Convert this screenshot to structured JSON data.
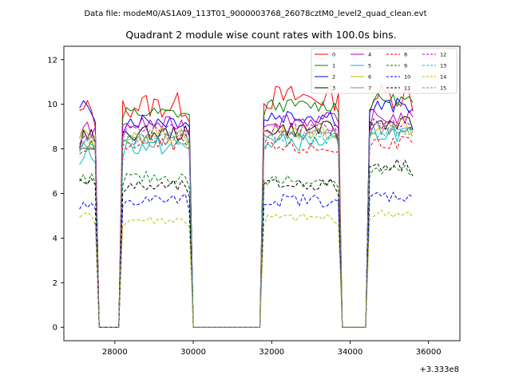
{
  "chart_data": {
    "type": "line",
    "suptitle": "Data file: modeM0/AS1A09_113T01_9000003768_26078cztM0_level2_quad_clean.evt",
    "title": "Quadrant 2 module wise count rates with 100.0s bins.",
    "xlabel": "",
    "ylabel": "",
    "x_offset_label": "+3.333e8",
    "xlim": [
      26700,
      36800
    ],
    "ylim": [
      -0.6,
      12.6
    ],
    "x_ticks": [
      {
        "value": 28000,
        "label": "28000"
      },
      {
        "value": 30000,
        "label": "30000"
      },
      {
        "value": 32000,
        "label": "32000"
      },
      {
        "value": 34000,
        "label": "34000"
      },
      {
        "value": 36000,
        "label": "36000"
      }
    ],
    "y_ticks": [
      {
        "value": 0,
        "label": "0"
      },
      {
        "value": 2,
        "label": "2"
      },
      {
        "value": 4,
        "label": "4"
      },
      {
        "value": 6,
        "label": "6"
      },
      {
        "value": 8,
        "label": "8"
      },
      {
        "value": 10,
        "label": "10"
      },
      {
        "value": 12,
        "label": "12"
      }
    ],
    "legend_position": "top-right",
    "grid": false,
    "segments": [
      {
        "start": 27100,
        "end": 27500
      },
      {
        "start": 28200,
        "end": 29900
      },
      {
        "start": 31800,
        "end": 33700
      },
      {
        "start": 34500,
        "end": 35600
      }
    ],
    "series": [
      {
        "name": "0",
        "color": "#ff0000",
        "style": "solid",
        "segment_means": [
          9.7,
          9.95,
          10.3,
          10.4
        ],
        "noise": 0.6
      },
      {
        "name": "1",
        "color": "#008000",
        "style": "solid",
        "segment_means": [
          8.2,
          9.6,
          9.95,
          10.2
        ],
        "noise": 0.3
      },
      {
        "name": "2",
        "color": "#0000ff",
        "style": "solid",
        "segment_means": [
          9.8,
          9.3,
          9.5,
          9.9
        ],
        "noise": 0.4
      },
      {
        "name": "3",
        "color": "#000000",
        "style": "solid",
        "segment_means": [
          8.6,
          8.7,
          8.9,
          9.2
        ],
        "noise": 0.35
      },
      {
        "name": "4",
        "color": "#bf00bf",
        "style": "solid",
        "segment_means": [
          8.9,
          9.1,
          9.3,
          9.4
        ],
        "noise": 0.35
      },
      {
        "name": "5",
        "color": "#00bfbf",
        "style": "solid",
        "segment_means": [
          7.8,
          8.1,
          8.3,
          8.7
        ],
        "noise": 0.4
      },
      {
        "name": "6",
        "color": "#bfbf00",
        "style": "solid",
        "segment_means": [
          8.5,
          8.7,
          8.8,
          9.0
        ],
        "noise": 0.4
      },
      {
        "name": "7",
        "color": "#808080",
        "style": "solid",
        "segment_means": [
          8.3,
          8.4,
          8.6,
          8.9
        ],
        "noise": 0.35
      },
      {
        "name": "8",
        "color": "#ff0000",
        "style": "dashed",
        "segment_means": [
          8.0,
          8.2,
          8.0,
          8.3
        ],
        "noise": 0.3
      },
      {
        "name": "9",
        "color": "#008000",
        "style": "dashed",
        "segment_means": [
          6.6,
          6.7,
          6.6,
          7.0
        ],
        "noise": 0.3
      },
      {
        "name": "10",
        "color": "#0000ff",
        "style": "dashed",
        "segment_means": [
          5.4,
          5.7,
          5.7,
          5.9
        ],
        "noise": 0.3
      },
      {
        "name": "11",
        "color": "#000000",
        "style": "dashed",
        "segment_means": [
          6.7,
          6.3,
          6.4,
          7.3
        ],
        "noise": 0.3
      },
      {
        "name": "12",
        "color": "#bf00bf",
        "style": "dashed",
        "segment_means": [
          8.5,
          8.8,
          8.9,
          9.1
        ],
        "noise": 0.3
      },
      {
        "name": "13",
        "color": "#00bfbf",
        "style": "dashed",
        "segment_means": [
          8.2,
          8.4,
          8.5,
          8.8
        ],
        "noise": 0.3
      },
      {
        "name": "14",
        "color": "#bfbf00",
        "style": "dashed",
        "segment_means": [
          5.0,
          4.8,
          4.9,
          5.1
        ],
        "noise": 0.2
      },
      {
        "name": "15",
        "color": "#808080",
        "style": "dashed",
        "segment_means": [
          8.4,
          8.6,
          8.7,
          8.9
        ],
        "noise": 0.3
      }
    ]
  }
}
